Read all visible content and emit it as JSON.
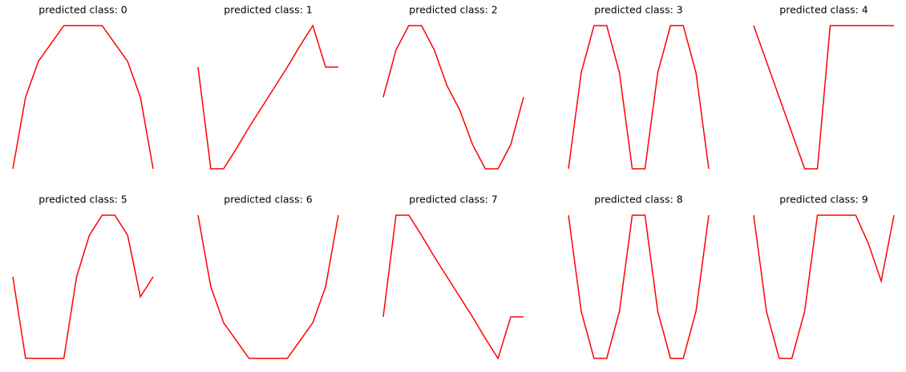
{
  "chart_data": [
    {
      "type": "line",
      "title": "predicted class: 0",
      "color": "#ff0000",
      "ylim": [
        0,
        1
      ],
      "values": [
        0,
        0.5,
        0.75,
        0.875,
        1,
        1,
        1,
        1,
        0.875,
        0.75,
        0.5,
        0
      ]
    },
    {
      "type": "line",
      "title": "predicted class: 1",
      "color": "#ff0000",
      "ylim": [
        0,
        1
      ],
      "values": [
        0.71,
        0,
        0,
        0.14,
        0.29,
        0.43,
        0.57,
        0.71,
        0.86,
        1,
        0.71,
        0.71
      ]
    },
    {
      "type": "line",
      "title": "predicted class: 2",
      "color": "#ff0000",
      "ylim": [
        0,
        1
      ],
      "values": [
        0.5,
        0.83,
        1,
        1,
        0.83,
        0.58,
        0.41,
        0.17,
        0,
        0,
        0.17,
        0.5
      ]
    },
    {
      "type": "line",
      "title": "predicted class: 3",
      "color": "#ff0000",
      "ylim": [
        0,
        1
      ],
      "values": [
        0,
        0.67,
        1,
        1,
        0.67,
        0,
        0,
        0.67,
        1,
        1,
        0.67,
        0
      ]
    },
    {
      "type": "line",
      "title": "predicted class: 4",
      "color": "#ff0000",
      "ylim": [
        0,
        1
      ],
      "values": [
        1,
        0.75,
        0.5,
        0.25,
        0,
        0,
        1,
        1,
        1,
        1,
        1,
        1
      ]
    },
    {
      "type": "line",
      "title": "predicted class: 5",
      "color": "#ff0000",
      "ylim": [
        0,
        1
      ],
      "values": [
        0.57,
        0,
        0,
        0,
        0,
        0.57,
        0.86,
        1,
        1,
        0.86,
        0.43,
        0.57
      ]
    },
    {
      "type": "line",
      "title": "predicted class: 6",
      "color": "#ff0000",
      "ylim": [
        0,
        1
      ],
      "values": [
        1,
        0.5,
        0.25,
        0.125,
        0,
        0,
        0,
        0,
        0.125,
        0.25,
        0.5,
        1
      ]
    },
    {
      "type": "line",
      "title": "predicted class: 7",
      "color": "#ff0000",
      "ylim": [
        0,
        1
      ],
      "values": [
        0.29,
        1,
        1,
        0.86,
        0.71,
        0.57,
        0.43,
        0.29,
        0.14,
        0,
        0.29,
        0.29
      ]
    },
    {
      "type": "line",
      "title": "predicted class: 8",
      "color": "#ff0000",
      "ylim": [
        0,
        1
      ],
      "values": [
        1,
        0.33,
        0,
        0,
        0.33,
        1,
        1,
        0.33,
        0,
        0,
        0.33,
        1
      ]
    },
    {
      "type": "line",
      "title": "predicted class: 9",
      "color": "#ff0000",
      "ylim": [
        0,
        1
      ],
      "values": [
        1,
        0.33,
        0,
        0,
        0.33,
        1,
        1,
        1,
        1,
        0.8,
        0.54,
        1
      ]
    }
  ]
}
